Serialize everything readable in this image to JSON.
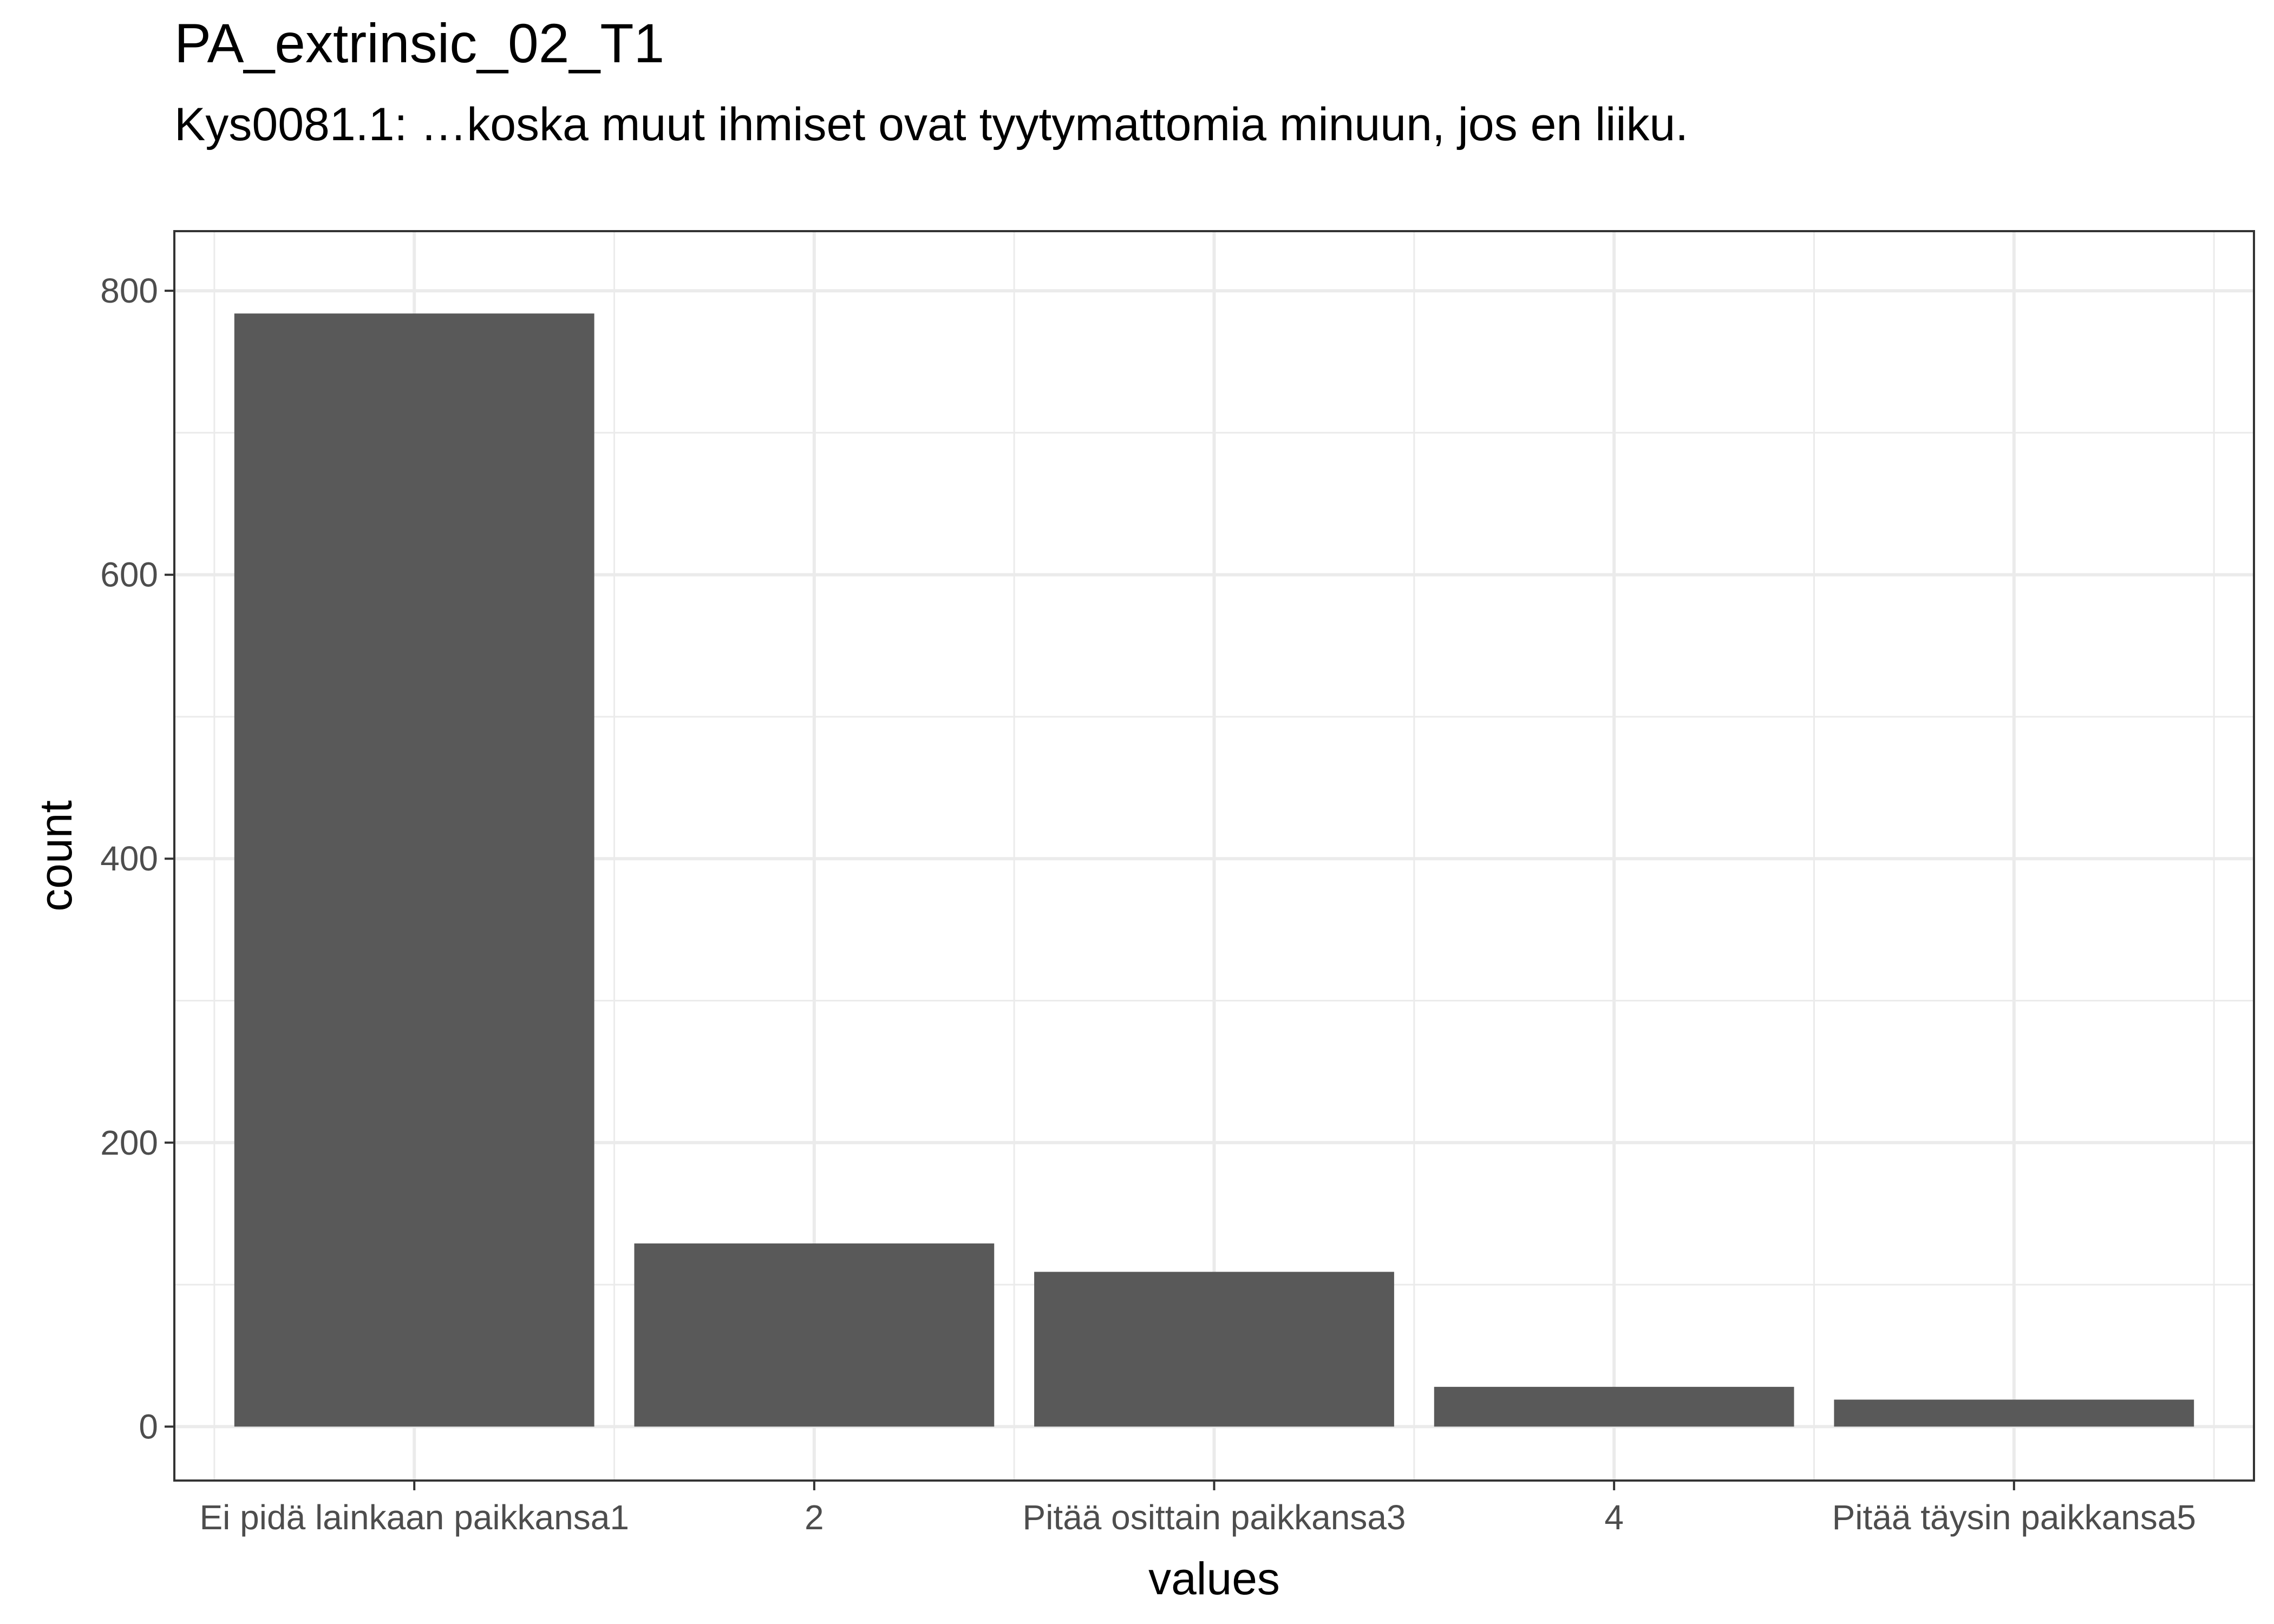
{
  "chart_data": {
    "type": "bar",
    "title": "PA_extrinsic_02_T1",
    "subtitle": "Kys0081.1: …koska muut ihmiset ovat tyytymattomia minuun, jos en liiku.",
    "xlabel": "values",
    "ylabel": "count",
    "categories": [
      "Ei pidä lainkaan paikkansa1",
      "2",
      "Pitää osittain paikkansa3",
      "4",
      "Pitää täysin paikkansa5"
    ],
    "values": [
      784,
      129,
      109,
      28,
      19
    ],
    "ylim": [
      -38,
      842
    ],
    "yticks": [
      0,
      200,
      400,
      600,
      800
    ],
    "grid": true,
    "bar_color": "#595959",
    "panel_border_color": "#333333",
    "grid_color": "#ebebeb"
  }
}
